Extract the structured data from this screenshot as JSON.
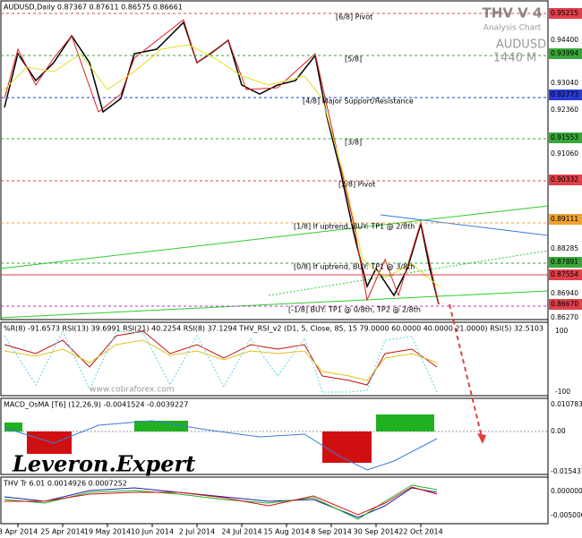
{
  "header": "AUDUSD,Daily  0.87367 0.87611 0.86575 0.86661",
  "brand": {
    "title": "THV V 4",
    "subtitle": "Analysis Chart",
    "symbol": "AUDUSD",
    "timeframe": "1440 M"
  },
  "levels": [
    {
      "label": "[6/8] Pivot",
      "color": "#e0404a"
    },
    {
      "label": "[5/8]",
      "color": "#3aa63a"
    },
    {
      "label": "[4/8] Major Support/Resistance",
      "color": "#2a3ad0"
    },
    {
      "label": "[3/8]",
      "color": "#3aa63a"
    },
    {
      "label": "[2/8] Pivot",
      "color": "#e0404a"
    },
    {
      "label": "[1/8] If uptrend, BUY: TP1 @ 2/8th",
      "color": "#f0a030"
    },
    {
      "label": "[0/8] If uptrend, BUY: TP1 @ 3/8th",
      "color": "#3aa63a"
    },
    {
      "label": "[-1/8] BUY: TP1 @ 0/8th, TP2 @ 2/8th",
      "color": "#c030c0"
    }
  ],
  "price_boxes": [
    {
      "label": "0.95215",
      "color": "#e0404a"
    },
    {
      "label": "0.93994",
      "color": "#3aa63a"
    },
    {
      "label": "0.92773",
      "color": "#2a3ad0"
    },
    {
      "label": "0.91553",
      "color": "#3aa63a"
    },
    {
      "label": "0.90332",
      "color": "#e0404a"
    },
    {
      "label": "0.89111",
      "color": "#f0a030"
    },
    {
      "label": "0.87891",
      "color": "#3aa63a"
    },
    {
      "label": "0.87554",
      "color": "#e0404a"
    },
    {
      "label": "0.86670",
      "color": "#e0404a"
    }
  ],
  "price_ticks": [
    "0.94400",
    "0.93040",
    "0.92360",
    "0.91060",
    "0.88285",
    "0.86940",
    "0.86270"
  ],
  "rsi_panel": {
    "header": "%R(8) -91.6573  RSI(13) 39.6991  RSI(21) 40.2254  RSI(8) 37.1294  THV_RSI_v2 (D1, 5, Close, 85, 15 79.0000 60.0000 40.0000 21.0000)  RSI(5) 32.5103",
    "ticks": [
      "100",
      "-100"
    ],
    "watermark": "www.cobraforex.com"
  },
  "macd_panel": {
    "header": "MACD_OsMA [T6] (12,26,9) -0.0041524 -0.0039227",
    "ticks": [
      "0.010783",
      "0.00",
      "-0.015437"
    ],
    "logo": "Leveron.Expert"
  },
  "trend_panel": {
    "header": "THV Tr 6.01 0.0014926 0.0007252",
    "ticks": [
      "0.000000",
      "-0.005000"
    ]
  },
  "dates": [
    "3 Apr 2014",
    "25 Apr 2014",
    "19 May 2014",
    "10 Jun 2014",
    "2 Jul 2014",
    "24 Jul 2014",
    "15 Aug 2014",
    "8 Sep 2014",
    "30 Sep 2014",
    "22 Oct 2014"
  ]
}
